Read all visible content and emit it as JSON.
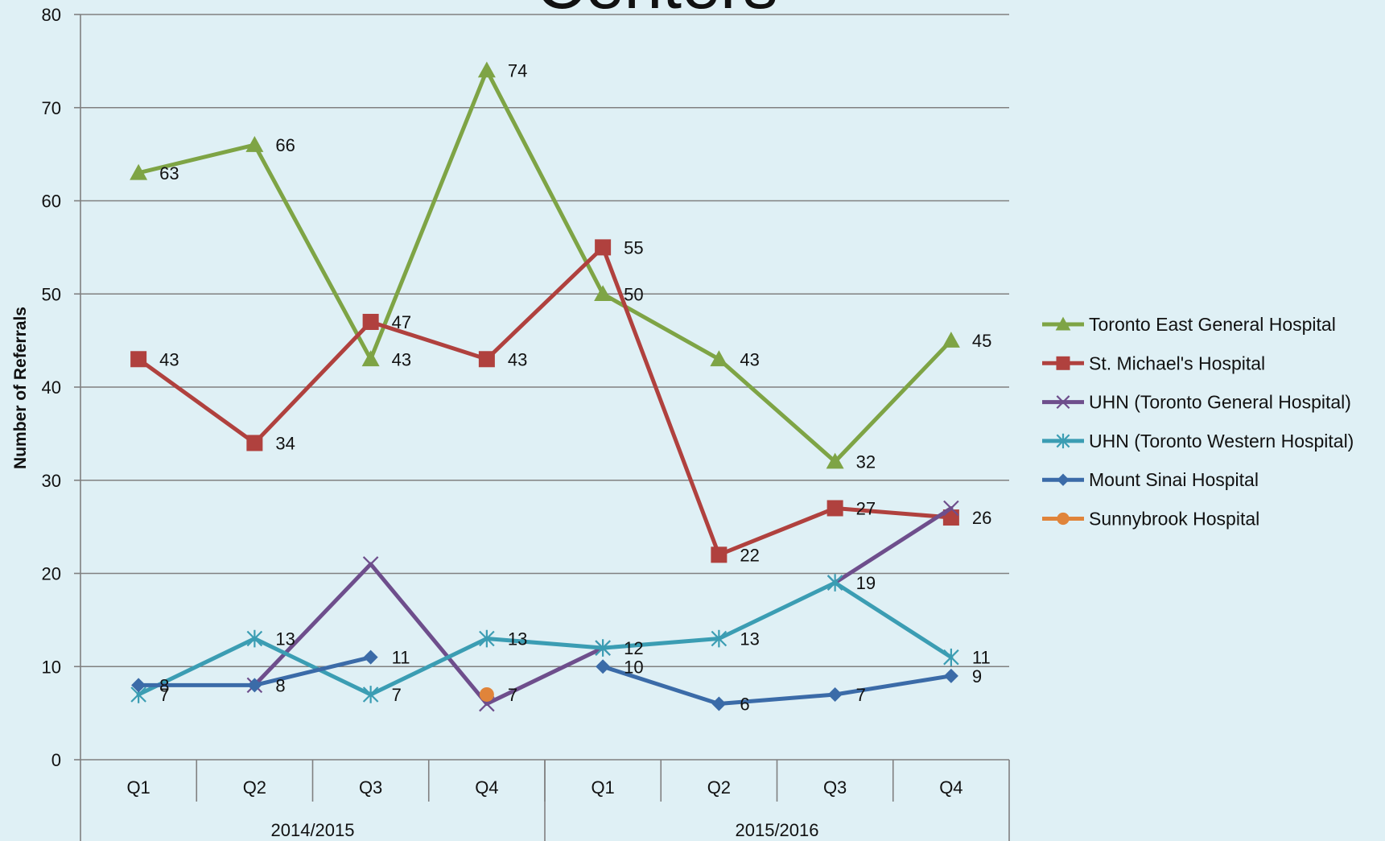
{
  "chart_data": {
    "type": "line",
    "title": "Centers",
    "ylabel": "Number of Referrals",
    "ylim": [
      0,
      80
    ],
    "yticks": [
      0,
      10,
      20,
      30,
      40,
      50,
      60,
      70,
      80
    ],
    "grid": true,
    "legend_position": "right",
    "categories": [
      "Q1",
      "Q2",
      "Q3",
      "Q4",
      "Q1",
      "Q2",
      "Q3",
      "Q4"
    ],
    "groups": [
      {
        "label": "2014/2015",
        "span": 4
      },
      {
        "label": "2015/2016",
        "span": 4
      }
    ],
    "series": [
      {
        "name": "Toronto East General Hospital",
        "color": "#7ea445",
        "marker": "triangle",
        "values": [
          63,
          66,
          43,
          74,
          50,
          43,
          32,
          45
        ]
      },
      {
        "name": "St. Michael's Hospital",
        "color": "#b0413e",
        "marker": "square",
        "values": [
          43,
          34,
          47,
          43,
          55,
          22,
          27,
          26
        ]
      },
      {
        "name": "UHN (Toronto General Hospital)",
        "color": "#6e4e8c",
        "marker": "x",
        "values": [
          null,
          8,
          21,
          6,
          12,
          null,
          19,
          27
        ]
      },
      {
        "name": "UHN (Toronto Western Hospital)",
        "color": "#3b9db3",
        "marker": "star",
        "values": [
          7,
          13,
          7,
          13,
          12,
          13,
          19,
          11
        ]
      },
      {
        "name": "Mount Sinai Hospital",
        "color": "#3b6ba8",
        "marker": "diamond",
        "values": [
          8,
          8,
          11,
          null,
          10,
          6,
          7,
          9
        ]
      },
      {
        "name": "Sunnybrook Hospital",
        "color": "#e0843a",
        "marker": "circle",
        "values": [
          null,
          null,
          null,
          7,
          null,
          null,
          null,
          null
        ]
      }
    ],
    "data_labels": [
      {
        "x": 0,
        "y": 63,
        "text": "63"
      },
      {
        "x": 1,
        "y": 66,
        "text": "66"
      },
      {
        "x": 2,
        "y": 43,
        "text": "43"
      },
      {
        "x": 3,
        "y": 74,
        "text": "74"
      },
      {
        "x": 4,
        "y": 50,
        "text": "50"
      },
      {
        "x": 5,
        "y": 43,
        "text": "43"
      },
      {
        "x": 6,
        "y": 32,
        "text": "32"
      },
      {
        "x": 7,
        "y": 45,
        "text": "45"
      },
      {
        "x": 0,
        "y": 43,
        "text": "43"
      },
      {
        "x": 1,
        "y": 34,
        "text": "34"
      },
      {
        "x": 2,
        "y": 47,
        "text": "47"
      },
      {
        "x": 3,
        "y": 43,
        "text": "43"
      },
      {
        "x": 4,
        "y": 55,
        "text": "55"
      },
      {
        "x": 5,
        "y": 22,
        "text": "22"
      },
      {
        "x": 6,
        "y": 27,
        "text": "27"
      },
      {
        "x": 7,
        "y": 26,
        "text": "26"
      },
      {
        "x": 1,
        "y": 13,
        "text": "13"
      },
      {
        "x": 3,
        "y": 13,
        "text": "13"
      },
      {
        "x": 4,
        "y": 12,
        "text": "12"
      },
      {
        "x": 5,
        "y": 13,
        "text": "13"
      },
      {
        "x": 6,
        "y": 19,
        "text": "19"
      },
      {
        "x": 7,
        "y": 11,
        "text": "11"
      },
      {
        "x": 0,
        "y": 8,
        "text": "8"
      },
      {
        "x": 0,
        "y": 7,
        "text": "7"
      },
      {
        "x": 1,
        "y": 8,
        "text": "8"
      },
      {
        "x": 2,
        "y": 11,
        "text": "11"
      },
      {
        "x": 2,
        "y": 7,
        "text": "7"
      },
      {
        "x": 3,
        "y": 7,
        "text": "7"
      },
      {
        "x": 4,
        "y": 10,
        "text": "10"
      },
      {
        "x": 5,
        "y": 6,
        "text": "6"
      },
      {
        "x": 6,
        "y": 7,
        "text": "7"
      },
      {
        "x": 7,
        "y": 9,
        "text": "9"
      }
    ]
  }
}
